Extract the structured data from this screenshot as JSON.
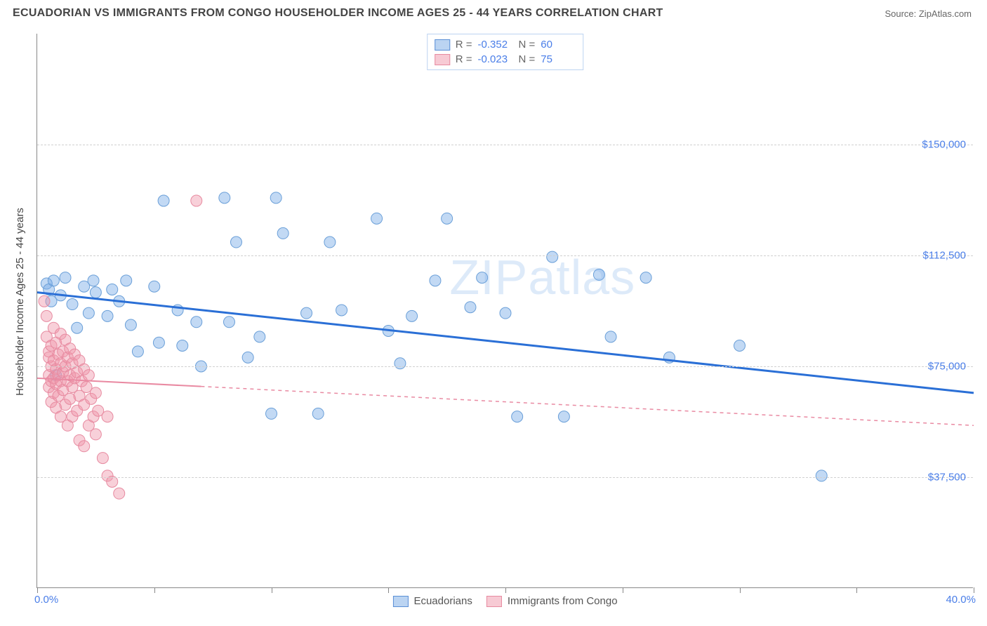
{
  "header": {
    "title": "ECUADORIAN VS IMMIGRANTS FROM CONGO HOUSEHOLDER INCOME AGES 25 - 44 YEARS CORRELATION CHART",
    "source": "Source: ZipAtlas.com"
  },
  "chart": {
    "type": "scatter",
    "xlim": [
      0.0,
      40.0
    ],
    "ylim": [
      0,
      187500
    ],
    "yticks": [
      37500,
      75000,
      112500,
      150000
    ],
    "ytick_labels": [
      "$37,500",
      "$75,000",
      "$112,500",
      "$150,000"
    ],
    "xlim_labels": [
      "0.0%",
      "40.0%"
    ],
    "xticks": [
      0,
      5,
      10,
      15,
      20,
      25,
      30,
      35,
      40
    ],
    "ylabel": "Householder Income Ages 25 - 44 years",
    "background": "#ffffff",
    "grid_color": "#d0d0d0",
    "axis_color": "#888888",
    "value_color": "#4a7ee8",
    "watermark": "ZIPatlas",
    "series": [
      {
        "name": "Ecuadorians",
        "color_fill": "rgba(120,170,230,0.45)",
        "color_stroke": "#6a9fd8",
        "trend_color": "#2a6fd6",
        "trend_width": 3,
        "trend_dash": "none",
        "trend_solid_xmax": 40.0,
        "R_label": "R =",
        "R": "-0.352",
        "N_label": "N =",
        "N": "60",
        "trend": {
          "y_at_xmin": 100000,
          "y_at_xmax": 66000
        },
        "points": [
          [
            0.4,
            103000
          ],
          [
            0.5,
            101000
          ],
          [
            0.6,
            97000
          ],
          [
            0.7,
            104000
          ],
          [
            0.8,
            72000
          ],
          [
            1.0,
            99000
          ],
          [
            1.2,
            105000
          ],
          [
            1.5,
            96000
          ],
          [
            1.7,
            88000
          ],
          [
            2.0,
            102000
          ],
          [
            2.2,
            93000
          ],
          [
            2.4,
            104000
          ],
          [
            2.5,
            100000
          ],
          [
            3.0,
            92000
          ],
          [
            3.2,
            101000
          ],
          [
            3.5,
            97000
          ],
          [
            3.8,
            104000
          ],
          [
            4.0,
            89000
          ],
          [
            4.3,
            80000
          ],
          [
            5.0,
            102000
          ],
          [
            5.2,
            83000
          ],
          [
            5.4,
            131000
          ],
          [
            6.0,
            94000
          ],
          [
            6.2,
            82000
          ],
          [
            6.8,
            90000
          ],
          [
            7.0,
            75000
          ],
          [
            8.0,
            132000
          ],
          [
            8.2,
            90000
          ],
          [
            8.5,
            117000
          ],
          [
            9.0,
            78000
          ],
          [
            9.5,
            85000
          ],
          [
            10.0,
            59000
          ],
          [
            10.2,
            132000
          ],
          [
            10.5,
            120000
          ],
          [
            11.5,
            93000
          ],
          [
            12.0,
            59000
          ],
          [
            12.5,
            117000
          ],
          [
            13.0,
            94000
          ],
          [
            14.5,
            125000
          ],
          [
            15.0,
            87000
          ],
          [
            15.5,
            76000
          ],
          [
            16.0,
            92000
          ],
          [
            17.0,
            104000
          ],
          [
            17.5,
            125000
          ],
          [
            18.5,
            95000
          ],
          [
            19.0,
            105000
          ],
          [
            20.0,
            93000
          ],
          [
            20.5,
            58000
          ],
          [
            22.0,
            112000
          ],
          [
            22.5,
            58000
          ],
          [
            24.0,
            106000
          ],
          [
            24.5,
            85000
          ],
          [
            26.0,
            105000
          ],
          [
            27.0,
            78000
          ],
          [
            30.0,
            82000
          ],
          [
            33.5,
            38000
          ]
        ]
      },
      {
        "name": "Immigrants from Congo",
        "color_fill": "rgba(240,150,170,0.45)",
        "color_stroke": "#e78aa0",
        "trend_color": "#e98aa2",
        "trend_width": 2,
        "trend_dash": "5,5",
        "trend_solid_xmax": 7.0,
        "R_label": "R =",
        "R": "-0.023",
        "N_label": "N =",
        "N": "75",
        "trend": {
          "y_at_xmin": 71000,
          "y_at_xmax": 55000
        },
        "points": [
          [
            0.3,
            97000
          ],
          [
            0.4,
            92000
          ],
          [
            0.4,
            85000
          ],
          [
            0.5,
            78000
          ],
          [
            0.5,
            80000
          ],
          [
            0.5,
            72000
          ],
          [
            0.5,
            68000
          ],
          [
            0.6,
            82000
          ],
          [
            0.6,
            75000
          ],
          [
            0.6,
            70000
          ],
          [
            0.6,
            63000
          ],
          [
            0.7,
            88000
          ],
          [
            0.7,
            77000
          ],
          [
            0.7,
            71000
          ],
          [
            0.7,
            66000
          ],
          [
            0.8,
            83000
          ],
          [
            0.8,
            74000
          ],
          [
            0.8,
            69000
          ],
          [
            0.8,
            61000
          ],
          [
            0.9,
            79000
          ],
          [
            0.9,
            72000
          ],
          [
            0.9,
            65000
          ],
          [
            1.0,
            86000
          ],
          [
            1.0,
            76000
          ],
          [
            1.0,
            70000
          ],
          [
            1.0,
            58000
          ],
          [
            1.1,
            80000
          ],
          [
            1.1,
            73000
          ],
          [
            1.1,
            67000
          ],
          [
            1.2,
            84000
          ],
          [
            1.2,
            75000
          ],
          [
            1.2,
            62000
          ],
          [
            1.3,
            78000
          ],
          [
            1.3,
            70000
          ],
          [
            1.3,
            55000
          ],
          [
            1.4,
            81000
          ],
          [
            1.4,
            72000
          ],
          [
            1.4,
            64000
          ],
          [
            1.5,
            76000
          ],
          [
            1.5,
            68000
          ],
          [
            1.5,
            58000
          ],
          [
            1.6,
            79000
          ],
          [
            1.6,
            71000
          ],
          [
            1.7,
            73000
          ],
          [
            1.7,
            60000
          ],
          [
            1.8,
            77000
          ],
          [
            1.8,
            65000
          ],
          [
            1.8,
            50000
          ],
          [
            1.9,
            70000
          ],
          [
            2.0,
            74000
          ],
          [
            2.0,
            62000
          ],
          [
            2.0,
            48000
          ],
          [
            2.1,
            68000
          ],
          [
            2.2,
            72000
          ],
          [
            2.2,
            55000
          ],
          [
            2.3,
            64000
          ],
          [
            2.4,
            58000
          ],
          [
            2.5,
            66000
          ],
          [
            2.5,
            52000
          ],
          [
            2.6,
            60000
          ],
          [
            2.8,
            44000
          ],
          [
            3.0,
            38000
          ],
          [
            3.0,
            58000
          ],
          [
            3.2,
            36000
          ],
          [
            3.5,
            32000
          ],
          [
            6.8,
            131000
          ]
        ]
      }
    ],
    "legend_bottom": {
      "items": [
        "Ecuadorians",
        "Immigrants from Congo"
      ]
    },
    "marker_radius": 8,
    "marker_stroke_width": 1
  }
}
